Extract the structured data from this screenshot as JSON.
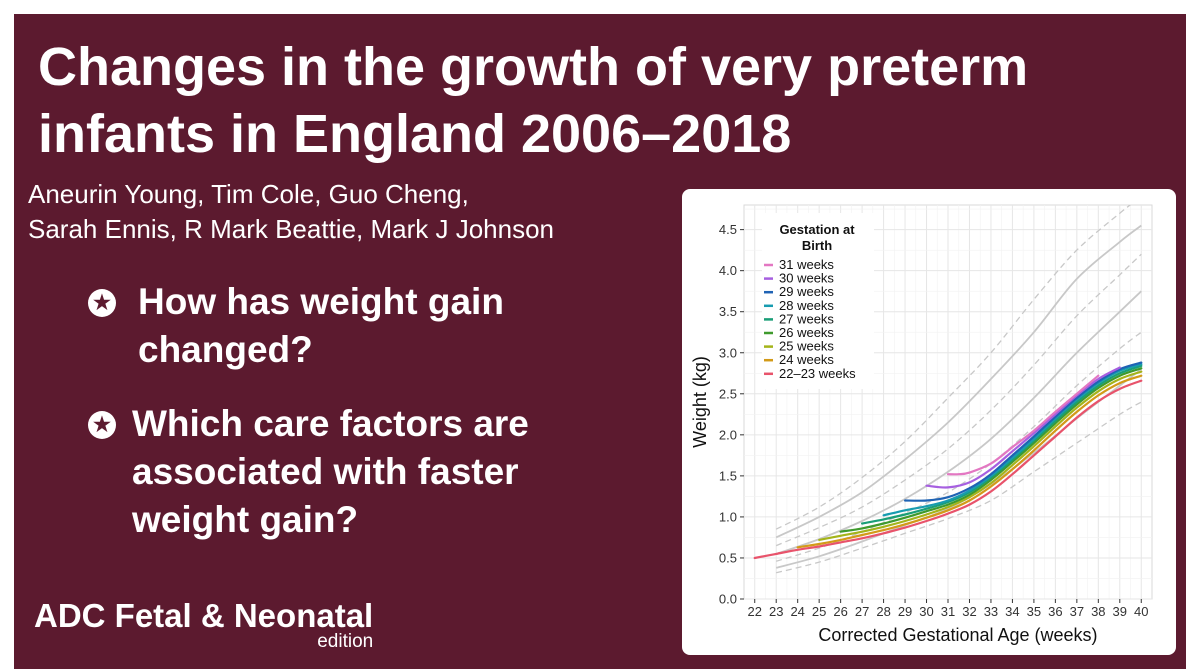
{
  "slide": {
    "title_lines": [
      "Changes in the growth of very preterm",
      "infants in England 2006–2018"
    ],
    "author_lines": [
      "Aneurin Young, Tim Cole, Guo Cheng,",
      "Sarah Ennis, R Mark Beattie, Mark J Johnson"
    ],
    "questions": [
      {
        "lines": [
          "How has weight gain",
          "changed?"
        ]
      },
      {
        "lines": [
          "Which care factors are",
          "associated with faster",
          "weight gain?"
        ]
      }
    ],
    "question_icon": "star-in-circle-icon",
    "journal_name": "ADC Fetal & Neonatal",
    "journal_edition": "edition",
    "colors": {
      "background": "#5c1a2f",
      "text": "#ffffff",
      "chart_background": "#ffffff"
    }
  },
  "chart_data": {
    "type": "line",
    "xlabel": "Corrected Gestational Age (weeks)",
    "ylabel": "Weight (kg)",
    "xlim": [
      21.5,
      40.5
    ],
    "ylim": [
      0,
      4.8
    ],
    "x_ticks": [
      22,
      23,
      24,
      25,
      26,
      27,
      28,
      29,
      30,
      31,
      32,
      33,
      34,
      35,
      36,
      37,
      38,
      39,
      40
    ],
    "y_ticks": [
      0.0,
      0.5,
      1.0,
      1.5,
      2.0,
      2.5,
      3.0,
      3.5,
      4.0,
      4.5
    ],
    "y_tick_labels": [
      "0.0",
      "0.5",
      "1.0",
      "1.5",
      "2.0",
      "2.5",
      "3.0",
      "3.5",
      "4.0",
      "4.5"
    ],
    "grid": true,
    "legend": {
      "title": "Gestation at Birth",
      "placement": "top-left"
    },
    "reference_centiles": [
      {
        "style": "dashed",
        "points": [
          [
            23,
            0.32
          ],
          [
            25,
            0.45
          ],
          [
            27,
            0.62
          ],
          [
            29,
            0.8
          ],
          [
            31,
            0.98
          ],
          [
            33,
            1.2
          ],
          [
            35,
            1.55
          ],
          [
            37,
            1.9
          ],
          [
            39,
            2.25
          ],
          [
            40,
            2.4
          ]
        ]
      },
      {
        "style": "solid",
        "points": [
          [
            23,
            0.38
          ],
          [
            25,
            0.52
          ],
          [
            27,
            0.7
          ],
          [
            29,
            0.9
          ],
          [
            31,
            1.1
          ],
          [
            33,
            1.4
          ],
          [
            35,
            1.78
          ],
          [
            37,
            2.2
          ],
          [
            39,
            2.6
          ],
          [
            40,
            2.8
          ]
        ]
      },
      {
        "style": "dashed",
        "points": [
          [
            23,
            0.46
          ],
          [
            25,
            0.62
          ],
          [
            27,
            0.82
          ],
          [
            29,
            1.05
          ],
          [
            31,
            1.3
          ],
          [
            33,
            1.65
          ],
          [
            35,
            2.1
          ],
          [
            37,
            2.6
          ],
          [
            39,
            3.05
          ],
          [
            40,
            3.25
          ]
        ]
      },
      {
        "style": "solid",
        "points": [
          [
            23,
            0.55
          ],
          [
            25,
            0.73
          ],
          [
            27,
            0.95
          ],
          [
            29,
            1.22
          ],
          [
            31,
            1.55
          ],
          [
            33,
            1.95
          ],
          [
            35,
            2.45
          ],
          [
            37,
            3.0
          ],
          [
            39,
            3.5
          ],
          [
            40,
            3.75
          ]
        ]
      },
      {
        "style": "dashed",
        "points": [
          [
            23,
            0.65
          ],
          [
            25,
            0.87
          ],
          [
            27,
            1.12
          ],
          [
            29,
            1.45
          ],
          [
            31,
            1.83
          ],
          [
            33,
            2.3
          ],
          [
            35,
            2.85
          ],
          [
            37,
            3.45
          ],
          [
            39,
            3.95
          ],
          [
            40,
            4.2
          ]
        ]
      },
      {
        "style": "solid",
        "points": [
          [
            23,
            0.75
          ],
          [
            25,
            1.0
          ],
          [
            27,
            1.3
          ],
          [
            29,
            1.7
          ],
          [
            31,
            2.15
          ],
          [
            33,
            2.68
          ],
          [
            35,
            3.25
          ],
          [
            37,
            3.9
          ],
          [
            39,
            4.35
          ],
          [
            40,
            4.55
          ]
        ]
      },
      {
        "style": "dashed",
        "points": [
          [
            23,
            0.85
          ],
          [
            25,
            1.12
          ],
          [
            27,
            1.48
          ],
          [
            29,
            1.92
          ],
          [
            31,
            2.45
          ],
          [
            33,
            3.0
          ],
          [
            35,
            3.65
          ],
          [
            37,
            4.25
          ],
          [
            39,
            4.7
          ],
          [
            40,
            4.9
          ]
        ]
      }
    ],
    "series": [
      {
        "name": "31 weeks",
        "color": "#e377c2",
        "points": [
          [
            31,
            1.52
          ],
          [
            31.5,
            1.52
          ],
          [
            32,
            1.54
          ],
          [
            33,
            1.65
          ],
          [
            34,
            1.85
          ],
          [
            35,
            2.05
          ],
          [
            36,
            2.28
          ],
          [
            37,
            2.5
          ],
          [
            38,
            2.72
          ]
        ]
      },
      {
        "name": "30 weeks",
        "color": "#a65fe0",
        "points": [
          [
            30,
            1.38
          ],
          [
            31,
            1.36
          ],
          [
            32,
            1.42
          ],
          [
            33,
            1.58
          ],
          [
            34,
            1.8
          ],
          [
            35,
            2.02
          ],
          [
            36,
            2.25
          ],
          [
            37,
            2.48
          ],
          [
            38,
            2.68
          ],
          [
            39,
            2.82
          ]
        ]
      },
      {
        "name": "29 weeks",
        "color": "#1f63b4",
        "points": [
          [
            29,
            1.2
          ],
          [
            30,
            1.2
          ],
          [
            31,
            1.24
          ],
          [
            32,
            1.35
          ],
          [
            33,
            1.52
          ],
          [
            34,
            1.75
          ],
          [
            35,
            1.98
          ],
          [
            36,
            2.22
          ],
          [
            37,
            2.45
          ],
          [
            38,
            2.65
          ],
          [
            39,
            2.8
          ],
          [
            40,
            2.88
          ]
        ]
      },
      {
        "name": "28 weeks",
        "color": "#179cb0",
        "points": [
          [
            28,
            1.02
          ],
          [
            29,
            1.08
          ],
          [
            30,
            1.13
          ],
          [
            31,
            1.2
          ],
          [
            32,
            1.32
          ],
          [
            33,
            1.5
          ],
          [
            34,
            1.72
          ],
          [
            35,
            1.95
          ],
          [
            36,
            2.2
          ],
          [
            37,
            2.43
          ],
          [
            38,
            2.63
          ],
          [
            39,
            2.78
          ],
          [
            40,
            2.86
          ]
        ]
      },
      {
        "name": "27 weeks",
        "color": "#1a9e77",
        "points": [
          [
            27,
            0.92
          ],
          [
            28,
            0.97
          ],
          [
            29,
            1.03
          ],
          [
            30,
            1.1
          ],
          [
            31,
            1.18
          ],
          [
            32,
            1.3
          ],
          [
            33,
            1.48
          ],
          [
            34,
            1.7
          ],
          [
            35,
            1.93
          ],
          [
            36,
            2.17
          ],
          [
            37,
            2.4
          ],
          [
            38,
            2.6
          ],
          [
            39,
            2.75
          ],
          [
            40,
            2.84
          ]
        ]
      },
      {
        "name": "26 weeks",
        "color": "#3f9a2d",
        "points": [
          [
            26,
            0.82
          ],
          [
            27,
            0.86
          ],
          [
            28,
            0.92
          ],
          [
            29,
            0.99
          ],
          [
            30,
            1.07
          ],
          [
            31,
            1.15
          ],
          [
            32,
            1.27
          ],
          [
            33,
            1.45
          ],
          [
            34,
            1.67
          ],
          [
            35,
            1.9
          ],
          [
            36,
            2.14
          ],
          [
            37,
            2.37
          ],
          [
            38,
            2.57
          ],
          [
            39,
            2.72
          ],
          [
            40,
            2.81
          ]
        ]
      },
      {
        "name": "25 weeks",
        "color": "#a4b41a",
        "points": [
          [
            25,
            0.72
          ],
          [
            26,
            0.77
          ],
          [
            27,
            0.82
          ],
          [
            28,
            0.88
          ],
          [
            29,
            0.95
          ],
          [
            30,
            1.03
          ],
          [
            31,
            1.12
          ],
          [
            32,
            1.24
          ],
          [
            33,
            1.41
          ],
          [
            34,
            1.63
          ],
          [
            35,
            1.86
          ],
          [
            36,
            2.1
          ],
          [
            37,
            2.33
          ],
          [
            38,
            2.53
          ],
          [
            39,
            2.68
          ],
          [
            40,
            2.77
          ]
        ]
      },
      {
        "name": "24 weeks",
        "color": "#d39a18",
        "points": [
          [
            24,
            0.63
          ],
          [
            25,
            0.67
          ],
          [
            26,
            0.72
          ],
          [
            27,
            0.78
          ],
          [
            28,
            0.84
          ],
          [
            29,
            0.91
          ],
          [
            30,
            0.99
          ],
          [
            31,
            1.08
          ],
          [
            32,
            1.2
          ],
          [
            33,
            1.37
          ],
          [
            34,
            1.58
          ],
          [
            35,
            1.81
          ],
          [
            36,
            2.05
          ],
          [
            37,
            2.28
          ],
          [
            38,
            2.48
          ],
          [
            39,
            2.63
          ],
          [
            40,
            2.72
          ]
        ]
      },
      {
        "name": "22–23 weeks",
        "color": "#e8536b",
        "points": [
          [
            22,
            0.5
          ],
          [
            23,
            0.55
          ],
          [
            24,
            0.6
          ],
          [
            25,
            0.64
          ],
          [
            26,
            0.69
          ],
          [
            27,
            0.74
          ],
          [
            28,
            0.8
          ],
          [
            29,
            0.87
          ],
          [
            30,
            0.95
          ],
          [
            31,
            1.04
          ],
          [
            32,
            1.15
          ],
          [
            33,
            1.31
          ],
          [
            34,
            1.52
          ],
          [
            35,
            1.75
          ],
          [
            36,
            1.98
          ],
          [
            37,
            2.21
          ],
          [
            38,
            2.41
          ],
          [
            39,
            2.56
          ],
          [
            40,
            2.66
          ]
        ]
      }
    ]
  }
}
